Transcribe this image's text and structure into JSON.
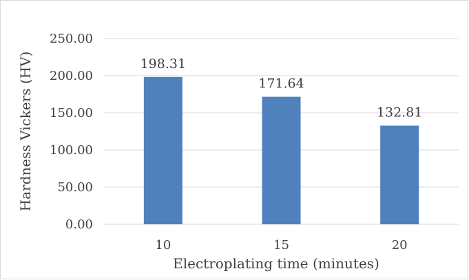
{
  "chart_data": {
    "type": "bar",
    "categories": [
      "10",
      "15",
      "20"
    ],
    "values": [
      198.31,
      171.64,
      132.81
    ],
    "value_labels": [
      "198.31",
      "171.64",
      "132.81"
    ],
    "title": "",
    "xlabel": "Electroplating time (minutes)",
    "ylabel": "Hardness Vickers (HV)",
    "ylim": [
      0,
      250
    ],
    "yticks": [
      "0.00",
      "50.00",
      "100.00",
      "150.00",
      "200.00",
      "250.00"
    ],
    "grid": true,
    "legend": "none",
    "bar_color": "#4f81bd",
    "grid_color": "#d9d9d9"
  }
}
